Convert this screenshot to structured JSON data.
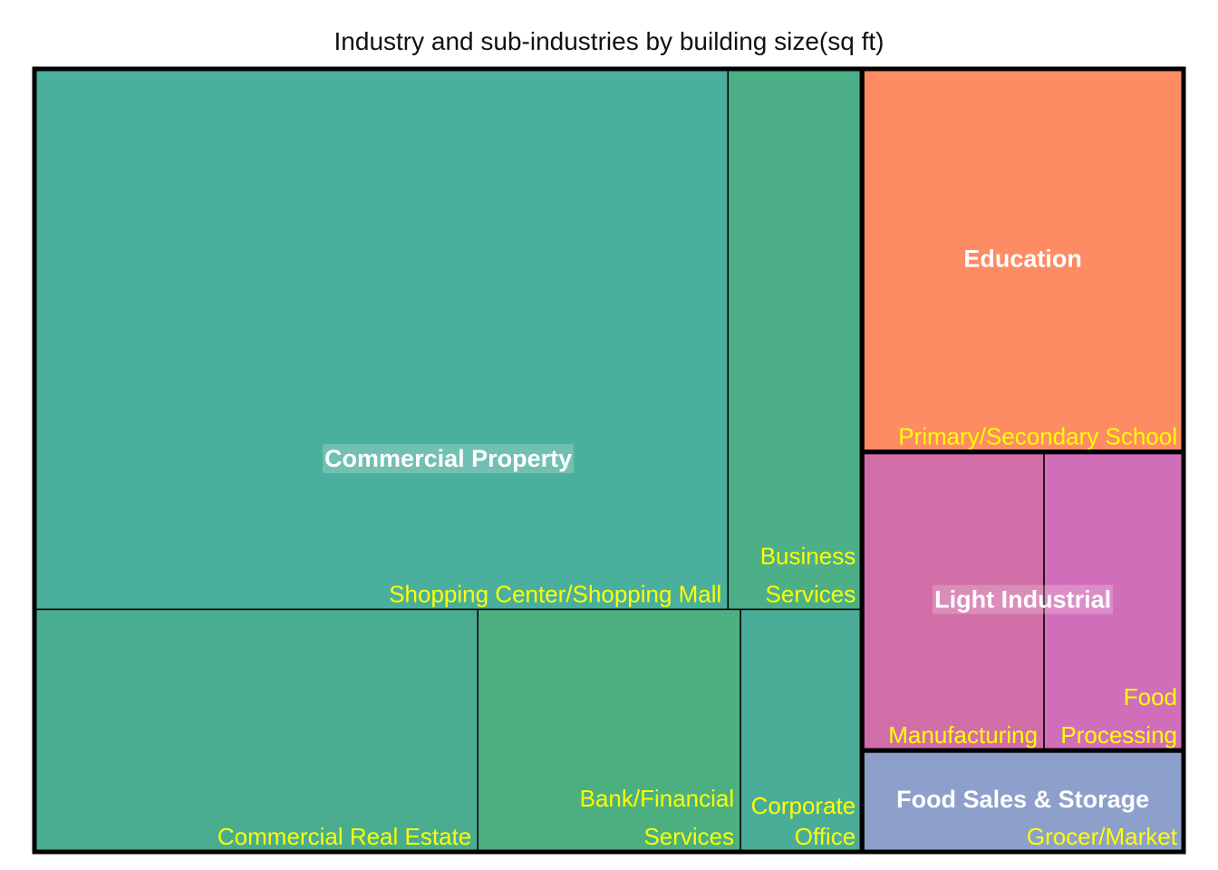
{
  "chart_data": {
    "type": "treemap",
    "title": "Industry and sub-industries by building size(sq ft)",
    "label_colors": {
      "group": "#ffffff",
      "subgroup": "#ffff00",
      "border": "#000000"
    },
    "groups": [
      {
        "name": "Commercial Property",
        "value": 35.78,
        "label_bg": true,
        "subgroups": [
          {
            "name": "Shopping Center/Shopping Mall",
            "label_lines": [
              "Shopping Center/Shopping Mall"
            ],
            "value": 20.7,
            "color": "#4AAF9C"
          },
          {
            "name": "Business Services",
            "label_lines": [
              "Business",
              "Services"
            ],
            "value": 4.0,
            "color": "#4CAF87"
          },
          {
            "name": "Commercial Real Estate",
            "label_lines": [
              "Commercial Real Estate"
            ],
            "value": 5.4,
            "color": "#4AAC8F"
          },
          {
            "name": "Bank/Financial Services",
            "label_lines": [
              "Bank/Financial",
              "Services"
            ],
            "value": 3.2,
            "color": "#4CAF80"
          },
          {
            "name": "Corporate Office",
            "label_lines": [
              "Corporate",
              "Office"
            ],
            "value": 1.48,
            "color": "#4AAD98"
          }
        ]
      },
      {
        "name": "Education",
        "value": 6.8,
        "label_bg": false,
        "subgroups": [
          {
            "name": "Primary/Secondary School",
            "label_lines": [
              "Primary/Secondary School"
            ],
            "value": 6.8,
            "color": "#FD8C65"
          }
        ]
      },
      {
        "name": "Light Industrial",
        "value": 5.3,
        "label_bg": true,
        "subgroups": [
          {
            "name": "Manufacturing",
            "label_lines": [
              "Manufacturing"
            ],
            "value": 3.0,
            "color": "#D16EA7"
          },
          {
            "name": "Food Processing",
            "label_lines": [
              "Food",
              "Processing"
            ],
            "value": 2.3,
            "color": "#D16EBA"
          }
        ]
      },
      {
        "name": "Food Sales & Storage",
        "value": 1.8,
        "label_bg": false,
        "subgroups": [
          {
            "name": "Grocer/Market",
            "label_lines": [
              "Grocer/Market"
            ],
            "value": 1.8,
            "color": "#8DA0CB"
          }
        ]
      }
    ]
  }
}
